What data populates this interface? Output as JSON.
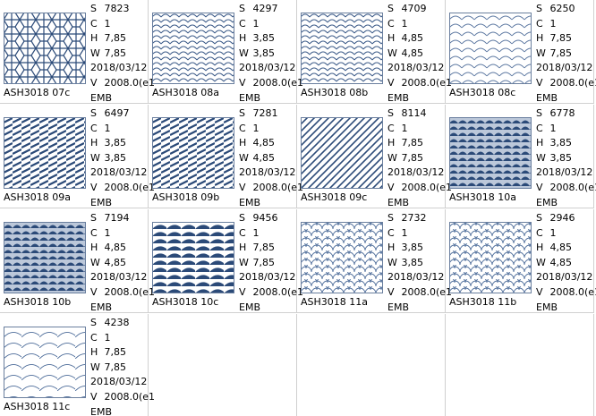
{
  "field_labels": {
    "s": "S",
    "c": "C",
    "h": "H",
    "w": "W",
    "v": "V"
  },
  "items": [
    {
      "name": "ASH3018 07c",
      "s": "7823",
      "c": "1",
      "h": "7,85",
      "w": "7,85",
      "date": "2018/03/12",
      "v": "2008.0(e1",
      "format": "EMB"
    },
    {
      "name": "ASH3018 08a",
      "s": "4297",
      "c": "1",
      "h": "3,85",
      "w": "3,85",
      "date": "2018/03/12",
      "v": "2008.0(e1",
      "format": "EMB"
    },
    {
      "name": "ASH3018 08b",
      "s": "4709",
      "c": "1",
      "h": "4,85",
      "w": "4,85",
      "date": "2018/03/12",
      "v": "2008.0(e1",
      "format": "EMB"
    },
    {
      "name": "ASH3018 08c",
      "s": "6250",
      "c": "1",
      "h": "7,85",
      "w": "7,85",
      "date": "2018/03/12",
      "v": "2008.0(e1",
      "format": "EMB"
    },
    {
      "name": "ASH3018 09a",
      "s": "6497",
      "c": "1",
      "h": "3,85",
      "w": "3,85",
      "date": "2018/03/12",
      "v": "2008.0(e1",
      "format": "EMB"
    },
    {
      "name": "ASH3018 09b",
      "s": "7281",
      "c": "1",
      "h": "4,85",
      "w": "4,85",
      "date": "2018/03/12",
      "v": "2008.0(e1",
      "format": "EMB"
    },
    {
      "name": "ASH3018 09c",
      "s": "8114",
      "c": "1",
      "h": "7,85",
      "w": "7,85",
      "date": "2018/03/12",
      "v": "2008.0(e1",
      "format": "EMB"
    },
    {
      "name": "ASH3018 10a",
      "s": "6778",
      "c": "1",
      "h": "3,85",
      "w": "3,85",
      "date": "2018/03/12",
      "v": "2008.0(e1",
      "format": "EMB"
    },
    {
      "name": "ASH3018 10b",
      "s": "7194",
      "c": "1",
      "h": "4,85",
      "w": "4,85",
      "date": "2018/03/12",
      "v": "2008.0(e1",
      "format": "EMB"
    },
    {
      "name": "ASH3018 10c",
      "s": "9456",
      "c": "1",
      "h": "7,85",
      "w": "7,85",
      "date": "2018/03/12",
      "v": "2008.0(e1",
      "format": "EMB"
    },
    {
      "name": "ASH3018 11a",
      "s": "2732",
      "c": "1",
      "h": "3,85",
      "w": "3,85",
      "date": "2018/03/12",
      "v": "2008.0(e1",
      "format": "EMB"
    },
    {
      "name": "ASH3018 11b",
      "s": "2946",
      "c": "1",
      "h": "4,85",
      "w": "4,85",
      "date": "2018/03/12",
      "v": "2008.0(e1",
      "format": "EMB"
    },
    {
      "name": "ASH3018 11c",
      "s": "4238",
      "c": "1",
      "h": "7,85",
      "w": "7,85",
      "date": "2018/03/12",
      "v": "2008.0(e1",
      "format": "EMB"
    }
  ]
}
